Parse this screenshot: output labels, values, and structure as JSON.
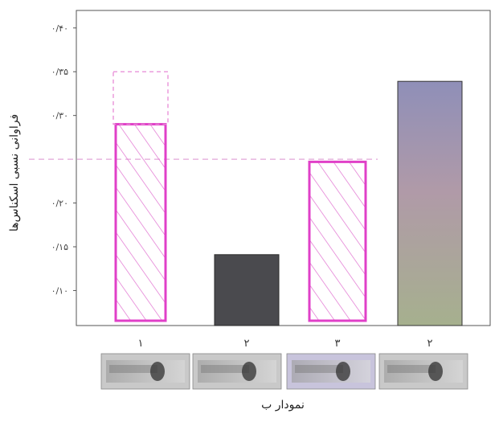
{
  "chart_data": {
    "type": "bar",
    "categories": [
      "۱",
      "۲",
      "۳",
      "۲"
    ],
    "values": [
      0.29,
      0.141,
      0.247,
      0.339
    ],
    "dashed_previous_value_bar1": 0.35,
    "reference_line": 0.25,
    "y_ticks": [
      {
        "value": 0.1,
        "label": "۰/۱۰"
      },
      {
        "value": 0.15,
        "label": "۰/۱۵"
      },
      {
        "value": 0.2,
        "label": "۰/۲۰"
      },
      {
        "value": 0.3,
        "label": "۰/۳۰"
      },
      {
        "value": 0.35,
        "label": "۰/۳۵"
      },
      {
        "value": 0.4,
        "label": "۰/۴۰"
      }
    ],
    "ylim": [
      0.06,
      0.42
    ],
    "ylabel": "فراوانی نسبی اسکناس‌ها",
    "xlabel": "نمودار ب",
    "grid": false,
    "bar_styles": [
      {
        "fill": "hatched",
        "stroke": "#e040c8"
      },
      {
        "fill": "#4a4a4e",
        "stroke": "#2a2a2a"
      },
      {
        "fill": "hatched",
        "stroke": "#e040c8"
      },
      {
        "fill": "gradient",
        "stroke": "#333333",
        "top_color": "#9a98b8",
        "bottom_color": "#a8b090"
      }
    ],
    "thumbnails": [
      "banknote-1",
      "banknote-2",
      "banknote-3",
      "banknote-4"
    ]
  }
}
